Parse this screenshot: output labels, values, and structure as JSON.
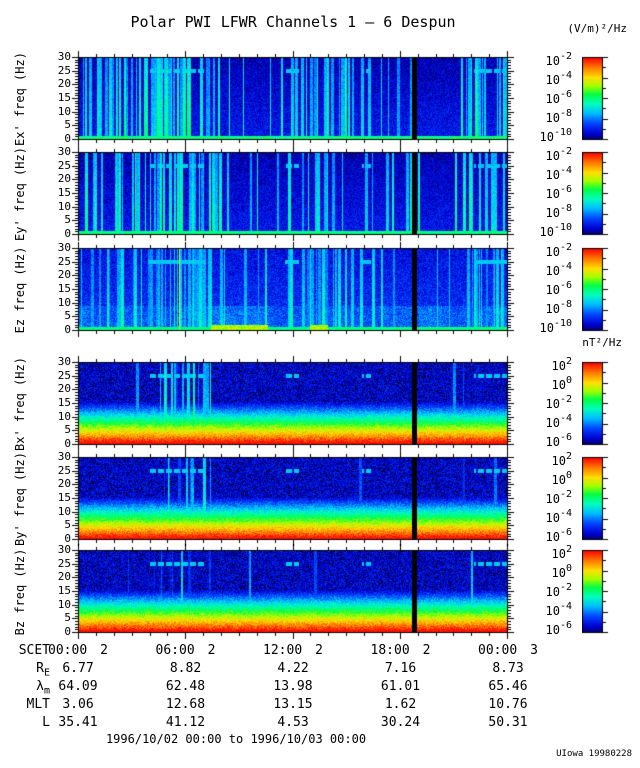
{
  "title": "Polar PWI LFWR Channels 1 — 6 Despun",
  "date_range": "1996/10/02 00:00 to 1996/10/03 00:00",
  "credit": "UIowa 19980228",
  "colors": {
    "background": "#ffffff",
    "frame": "#000000",
    "colormap_low": "#00005f",
    "colormap_high": "#ff0000"
  },
  "chart_data": {
    "type": "heatmap",
    "subtype": "spectrogram-stack",
    "colormap": "rainbow",
    "freq_axis_units": "Hz",
    "freq_range_hz": [
      0,
      30
    ],
    "freq_ticks": [
      30,
      25,
      20,
      15,
      10,
      5,
      0
    ],
    "time_axis": {
      "label": "SCET",
      "start": "1996/10/02 00:00",
      "end": "1996/10/03 00:00",
      "range_hours": [
        0,
        24
      ],
      "major_tick_hours": [
        0,
        6,
        12,
        18,
        24
      ]
    },
    "colorbars": {
      "e": {
        "units": "(V/m)²/Hz",
        "base": "10",
        "exponents": [
          "-2",
          "-4",
          "-6",
          "-8",
          "-10"
        ],
        "tick_labels": [
          "10⁻²",
          "10⁻⁴",
          "10⁻⁶",
          "10⁻⁸",
          "10⁻¹⁰"
        ]
      },
      "b": {
        "units": "nT²/Hz",
        "base": "10",
        "exponents": [
          "2",
          "0",
          "-2",
          "-4",
          "-6"
        ],
        "tick_labels": [
          "10²",
          "10⁰",
          "10⁻²",
          "10⁻⁴",
          "10⁻⁶"
        ]
      }
    },
    "black_line_hour": 18.75,
    "dash_freq_hz": 25,
    "dash_segments_hours": [
      [
        3.9,
        7.1
      ],
      [
        11.5,
        12.3
      ],
      [
        15.8,
        16.3
      ],
      [
        22.1,
        24
      ]
    ],
    "panels": [
      {
        "id": "ex",
        "ylabel": "Ex' freq (Hz)",
        "field": "E",
        "bar": "e",
        "seed": 11,
        "amp": 1.0,
        "base_density": 0.06,
        "activity": [
          [
            0,
            0.3,
            0.35
          ],
          [
            0.3,
            3.9,
            0.6
          ],
          [
            3.9,
            5.7,
            0.85
          ],
          [
            5.7,
            7.9,
            0.6
          ],
          [
            7.9,
            12.1,
            0.08
          ],
          [
            12.1,
            14.4,
            0.55
          ],
          [
            14.4,
            16.8,
            0.3
          ],
          [
            16.8,
            19,
            0.15
          ],
          [
            19,
            21.3,
            0.1
          ],
          [
            21.3,
            24,
            0.5
          ]
        ]
      },
      {
        "id": "ey",
        "ylabel": "Ey' freq (Hz)",
        "field": "E",
        "bar": "e",
        "seed": 22,
        "amp": 1.0,
        "base_density": 0.06,
        "activity": [
          [
            0,
            0.3,
            0.35
          ],
          [
            0.3,
            3.9,
            0.6
          ],
          [
            3.9,
            5.7,
            0.85
          ],
          [
            5.7,
            7.9,
            0.6
          ],
          [
            7.9,
            12.1,
            0.08
          ],
          [
            12.1,
            14.4,
            0.55
          ],
          [
            14.4,
            16.8,
            0.3
          ],
          [
            16.8,
            19,
            0.15
          ],
          [
            19,
            21.3,
            0.1
          ],
          [
            21.3,
            24,
            0.5
          ]
        ]
      },
      {
        "id": "ez",
        "ylabel": "Ez freq (Hz)",
        "field": "Ez",
        "bar": "e",
        "seed": 33,
        "amp": 0.85,
        "base_density": 0.1,
        "orange_line_hour": 5.64,
        "yellow_spots": [
          [
            7.4,
            10.6
          ],
          [
            12.9,
            13.9
          ]
        ],
        "activity": [
          [
            0,
            3.9,
            0.45
          ],
          [
            3.9,
            7.4,
            0.6
          ],
          [
            7.4,
            12.1,
            0.15
          ],
          [
            12.1,
            12.9,
            0.6
          ],
          [
            12.9,
            13.6,
            0.95
          ],
          [
            13.6,
            14.6,
            0.6
          ],
          [
            14.6,
            16.8,
            0.35
          ],
          [
            16.8,
            21.3,
            0.15
          ],
          [
            21.3,
            24,
            0.5
          ]
        ]
      },
      {
        "id": "bx",
        "ylabel": "Bx' freq (Hz)",
        "field": "B",
        "bar": "b",
        "seed": 44,
        "amp": 1.0,
        "base_density": 0.02,
        "activity": [
          [
            4.2,
            7.4,
            0.6
          ]
        ]
      },
      {
        "id": "by",
        "ylabel": "By' freq (Hz)",
        "field": "B",
        "bar": "b",
        "seed": 55,
        "amp": 0.85,
        "base_density": 0.02,
        "activity": [
          [
            4.2,
            7.4,
            0.5
          ]
        ]
      },
      {
        "id": "bz",
        "ylabel": "Bz freq (Hz)",
        "field": "B",
        "bar": "b",
        "seed": 66,
        "amp": 0.7,
        "base_density": 0.02,
        "activity": [
          [
            4.2,
            7.4,
            0.35
          ]
        ]
      }
    ],
    "ephemeris_rows": [
      {
        "id": "scet",
        "label": "SCET",
        "sub": "",
        "values": [
          "00:00",
          "06:00",
          "12:00",
          "18:00",
          "00:00"
        ],
        "days": [
          "2",
          "2",
          "2",
          "2",
          "3"
        ]
      },
      {
        "id": "re",
        "label": "R",
        "sub": "E",
        "values": [
          "6.77",
          "8.82",
          "4.22",
          "7.16",
          "8.73"
        ]
      },
      {
        "id": "lambda-m",
        "label": "λ",
        "sub": "m",
        "values": [
          "64.09",
          "62.48",
          "13.98",
          "61.01",
          "65.46"
        ]
      },
      {
        "id": "mlt",
        "label": "MLT",
        "sub": "",
        "values": [
          "3.06",
          "12.68",
          "13.15",
          "1.62",
          "10.76"
        ]
      },
      {
        "id": "l",
        "label": "L",
        "sub": "",
        "values": [
          "35.41",
          "41.12",
          "4.53",
          "30.24",
          "50.31"
        ]
      }
    ]
  }
}
